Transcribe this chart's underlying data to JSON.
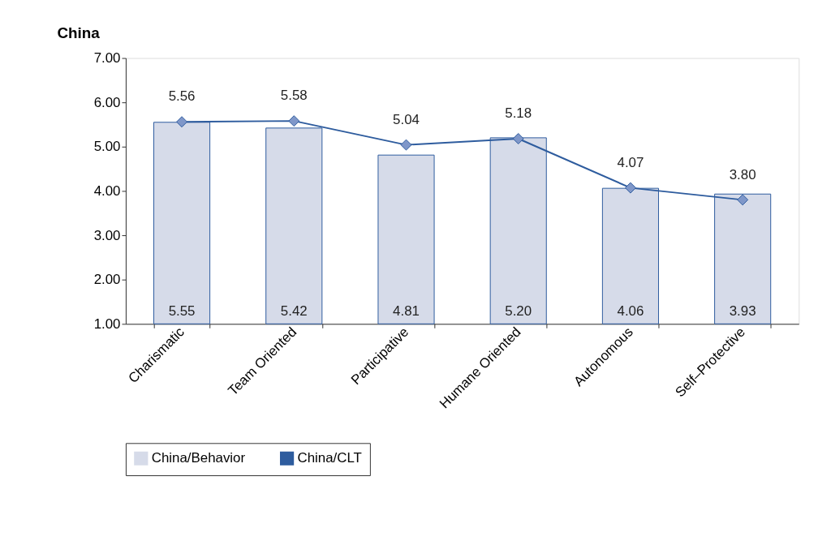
{
  "chart_data": {
    "type": "bar",
    "title": "China",
    "categories": [
      "Charismatic",
      "Team Oriented",
      "Participative",
      "Humane Oriented",
      "Autonomous",
      "Self–Protective"
    ],
    "series": [
      {
        "name": "China/Behavior",
        "color": "#d6dbe9",
        "values": [
          5.55,
          5.42,
          4.81,
          5.2,
          4.06,
          3.93
        ],
        "value_labels": [
          "5.55",
          "5.42",
          "4.81",
          "5.20",
          "4.06",
          "3.93"
        ]
      },
      {
        "name": "China/CLT",
        "type": "line",
        "color": "#2e5c9e",
        "values": [
          5.56,
          5.58,
          5.04,
          5.18,
          4.07,
          3.8
        ],
        "value_labels": [
          "5.56",
          "5.58",
          "5.04",
          "5.18",
          "4.07",
          "3.80"
        ]
      }
    ],
    "ylim": [
      1,
      7
    ],
    "yticks": [
      {
        "value": 1,
        "label": "1.00"
      },
      {
        "value": 2,
        "label": "2.00"
      },
      {
        "value": 3,
        "label": "3.00"
      },
      {
        "value": 4,
        "label": "4.00"
      },
      {
        "value": 5,
        "label": "5.00"
      },
      {
        "value": 6,
        "label": "6.00"
      },
      {
        "value": 7,
        "label": "7.00"
      }
    ],
    "marker": "diamond",
    "legend": "bottom",
    "grid": false
  }
}
